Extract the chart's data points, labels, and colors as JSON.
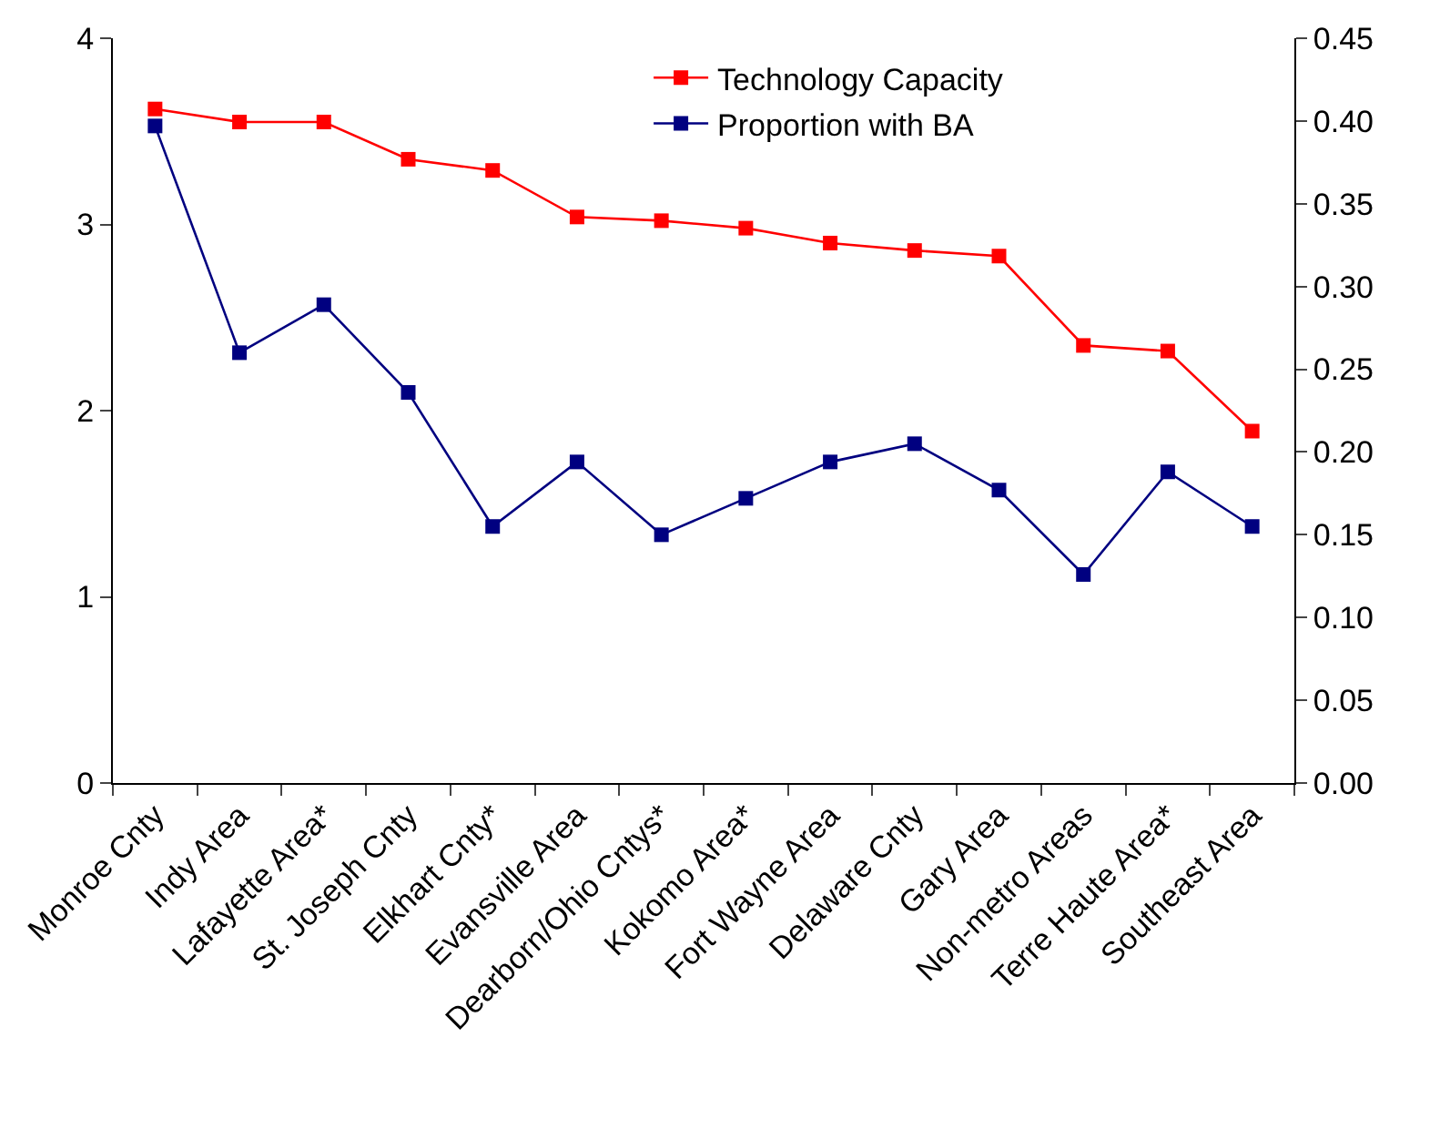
{
  "chart_data": {
    "type": "line",
    "categories": [
      "Monroe Cnty",
      "Indy Area",
      "Lafayette Area*",
      "St. Joseph Cnty",
      "Elkhart Cnty*",
      "Evansville Area",
      "Dearborn/Ohio Cntys*",
      "Kokomo Area*",
      "Fort Wayne Area",
      "Delaware Cnty",
      "Gary Area",
      "Non-metro Areas",
      "Terre Haute Area*",
      "Southeast Area"
    ],
    "series": [
      {
        "name": "Technology Capacity",
        "color": "#ff0000",
        "values": [
          3.62,
          3.55,
          3.55,
          3.35,
          3.29,
          3.04,
          3.02,
          2.98,
          2.9,
          2.86,
          2.83,
          2.35,
          2.32,
          1.89
        ]
      },
      {
        "name": "Proportion with BA",
        "color": "#000080",
        "axis": "y2",
        "values": [
          0.397,
          0.26,
          0.289,
          0.236,
          0.155,
          0.194,
          0.15,
          0.172,
          0.194,
          0.205,
          0.177,
          0.126,
          0.188,
          0.155
        ]
      }
    ],
    "ylim": [
      0,
      4
    ],
    "yticks": [
      0,
      1,
      2,
      3,
      4
    ],
    "y2lim": [
      0,
      0.45
    ],
    "y2ticks": [
      {
        "value": 0,
        "label": "0.00"
      },
      {
        "value": 0.05,
        "label": "0.05"
      },
      {
        "value": 0.1,
        "label": "0.10"
      },
      {
        "value": 0.15,
        "label": "0.15"
      },
      {
        "value": 0.2,
        "label": "0.20"
      },
      {
        "value": 0.25,
        "label": "0.25"
      },
      {
        "value": 0.3,
        "label": "0.30"
      },
      {
        "value": 0.35,
        "label": "0.35"
      },
      {
        "value": 0.4,
        "label": "0.40"
      },
      {
        "value": 0.45,
        "label": "0.45"
      }
    ],
    "legend": "top right",
    "marker": "square",
    "line_style": "solid"
  }
}
